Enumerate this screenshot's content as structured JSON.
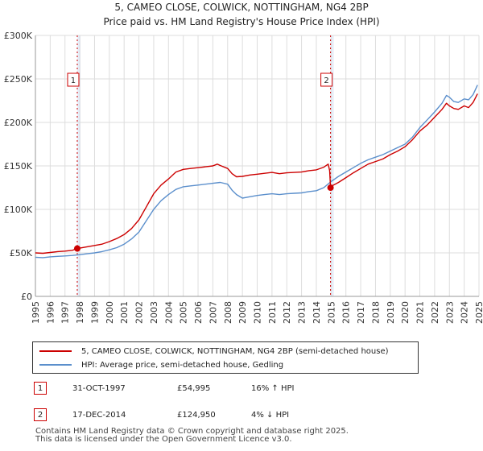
{
  "title": "5, CAMEO CLOSE, COLWICK, NOTTINGHAM, NG4 2BP",
  "subtitle": "Price paid vs. HM Land Registry's House Price Index (HPI)",
  "colors": {
    "property": "#cc0000",
    "hpi": "#5b8fcc",
    "sale_band": "#dde6f5"
  },
  "chart_data": {
    "type": "line",
    "title": "5, CAMEO CLOSE, COLWICK, NOTTINGHAM, NG4 2BP",
    "subtitle": "Price paid vs. HM Land Registry's House Price Index (HPI)",
    "xlim": [
      1995,
      2025
    ],
    "ylim": [
      0,
      300000
    ],
    "y_ticks": [
      0,
      50000,
      100000,
      150000,
      200000,
      250000,
      300000
    ],
    "y_tick_labels": [
      "£0",
      "£50K",
      "£100K",
      "£150K",
      "£200K",
      "£250K",
      "£300K"
    ],
    "x_ticks": [
      1995,
      1996,
      1997,
      1998,
      1999,
      2000,
      2001,
      2002,
      2003,
      2004,
      2005,
      2006,
      2007,
      2008,
      2009,
      2010,
      2011,
      2012,
      2013,
      2014,
      2015,
      2016,
      2017,
      2018,
      2019,
      2020,
      2021,
      2022,
      2023,
      2024,
      2025
    ],
    "x_tick_labels": [
      "1995",
      "1996",
      "1997",
      "1998",
      "1999",
      "2000",
      "2001",
      "2002",
      "2003",
      "2004",
      "2005",
      "2006",
      "2007",
      "2008",
      "2009",
      "2010",
      "2011",
      "2012",
      "2013",
      "2014",
      "2015",
      "2016",
      "2017",
      "2018",
      "2019",
      "2020",
      "2021",
      "2022",
      "2023",
      "2024",
      "2025"
    ],
    "grid": true,
    "legend_position": "bottom",
    "series": [
      {
        "name": "5, CAMEO CLOSE, COLWICK, NOTTINGHAM, NG4 2BP (semi-detached house)",
        "x": [
          1995.0,
          1995.5,
          1996.0,
          1996.5,
          1997.0,
          1997.5,
          1997.83,
          1998.0,
          1998.5,
          1999.0,
          1999.5,
          2000.0,
          2000.5,
          2001.0,
          2001.5,
          2002.0,
          2002.5,
          2003.0,
          2003.5,
          2004.0,
          2004.5,
          2005.0,
          2005.5,
          2006.0,
          2006.5,
          2007.0,
          2007.3,
          2007.5,
          2008.0,
          2008.3,
          2008.6,
          2009.0,
          2009.5,
          2010.0,
          2010.5,
          2011.0,
          2011.5,
          2012.0,
          2012.5,
          2013.0,
          2013.5,
          2014.0,
          2014.5,
          2014.8,
          2014.9,
          2014.96,
          2015.0,
          2015.5,
          2016.0,
          2016.5,
          2017.0,
          2017.5,
          2018.0,
          2018.5,
          2019.0,
          2019.5,
          2020.0,
          2020.5,
          2021.0,
          2021.5,
          2022.0,
          2022.5,
          2022.8,
          2023.0,
          2023.3,
          2023.6,
          2024.0,
          2024.3,
          2024.6,
          2024.9
        ],
        "values": [
          50000,
          49500,
          50500,
          51500,
          52000,
          53000,
          54995,
          55500,
          57000,
          58500,
          60000,
          63000,
          66500,
          71000,
          78000,
          88000,
          103000,
          118000,
          128000,
          135000,
          143000,
          146000,
          147000,
          148000,
          149000,
          150000,
          152000,
          150500,
          147000,
          141000,
          137500,
          138000,
          139500,
          140500,
          141500,
          142500,
          141000,
          142000,
          142500,
          143000,
          144500,
          145500,
          148500,
          152000,
          144500,
          124950,
          126500,
          131000,
          136500,
          142000,
          147000,
          152000,
          155000,
          158000,
          163000,
          167000,
          172000,
          180000,
          190000,
          197000,
          206000,
          215000,
          222000,
          219000,
          216000,
          215000,
          219000,
          217000,
          223000,
          233000
        ]
      },
      {
        "name": "HPI: Average price, semi-detached house, Gedling",
        "x": [
          1995.0,
          1995.5,
          1996.0,
          1996.5,
          1997.0,
          1997.5,
          1998.0,
          1998.5,
          1999.0,
          1999.5,
          2000.0,
          2000.5,
          2001.0,
          2001.5,
          2002.0,
          2002.5,
          2003.0,
          2003.5,
          2004.0,
          2004.5,
          2005.0,
          2005.5,
          2006.0,
          2006.5,
          2007.0,
          2007.5,
          2008.0,
          2008.3,
          2008.6,
          2009.0,
          2009.5,
          2010.0,
          2010.5,
          2011.0,
          2011.5,
          2012.0,
          2012.5,
          2013.0,
          2013.5,
          2014.0,
          2014.5,
          2015.0,
          2015.5,
          2016.0,
          2016.5,
          2017.0,
          2017.5,
          2018.0,
          2018.5,
          2019.0,
          2019.5,
          2020.0,
          2020.5,
          2021.0,
          2021.5,
          2022.0,
          2022.5,
          2022.8,
          2023.0,
          2023.3,
          2023.6,
          2024.0,
          2024.3,
          2024.6,
          2024.9
        ],
        "values": [
          45000,
          44500,
          45500,
          46000,
          46500,
          47000,
          48000,
          49000,
          50000,
          51500,
          53500,
          56000,
          60000,
          66000,
          74000,
          87000,
          100000,
          110000,
          117000,
          123000,
          126000,
          127000,
          128000,
          129000,
          130000,
          131000,
          129000,
          122000,
          117000,
          113000,
          114500,
          116000,
          117000,
          118000,
          117000,
          118000,
          118500,
          119000,
          120500,
          121500,
          125000,
          132000,
          138000,
          143000,
          148000,
          153000,
          157000,
          160000,
          163000,
          167000,
          171000,
          175000,
          183000,
          194000,
          203000,
          212000,
          222000,
          231000,
          229000,
          224000,
          223000,
          227000,
          226000,
          232000,
          243000
        ]
      }
    ],
    "sales": [
      {
        "label": "1",
        "x": 1997.83,
        "value": 54995
      },
      {
        "label": "2",
        "x": 2014.96,
        "value": 124950
      }
    ]
  },
  "legend": {
    "property_label": "5, CAMEO CLOSE, COLWICK, NOTTINGHAM, NG4 2BP (semi-detached house)",
    "hpi_label": "HPI: Average price, semi-detached house, Gedling"
  },
  "transactions": [
    {
      "num": "1",
      "date": "31-OCT-1997",
      "price": "£54,995",
      "hpi": "16% ↑ HPI"
    },
    {
      "num": "2",
      "date": "17-DEC-2014",
      "price": "£124,950",
      "hpi": "4% ↓ HPI"
    }
  ],
  "footer": {
    "line1": "Contains HM Land Registry data © Crown copyright and database right 2025.",
    "line2": "This data is licensed under the Open Government Licence v3.0."
  }
}
